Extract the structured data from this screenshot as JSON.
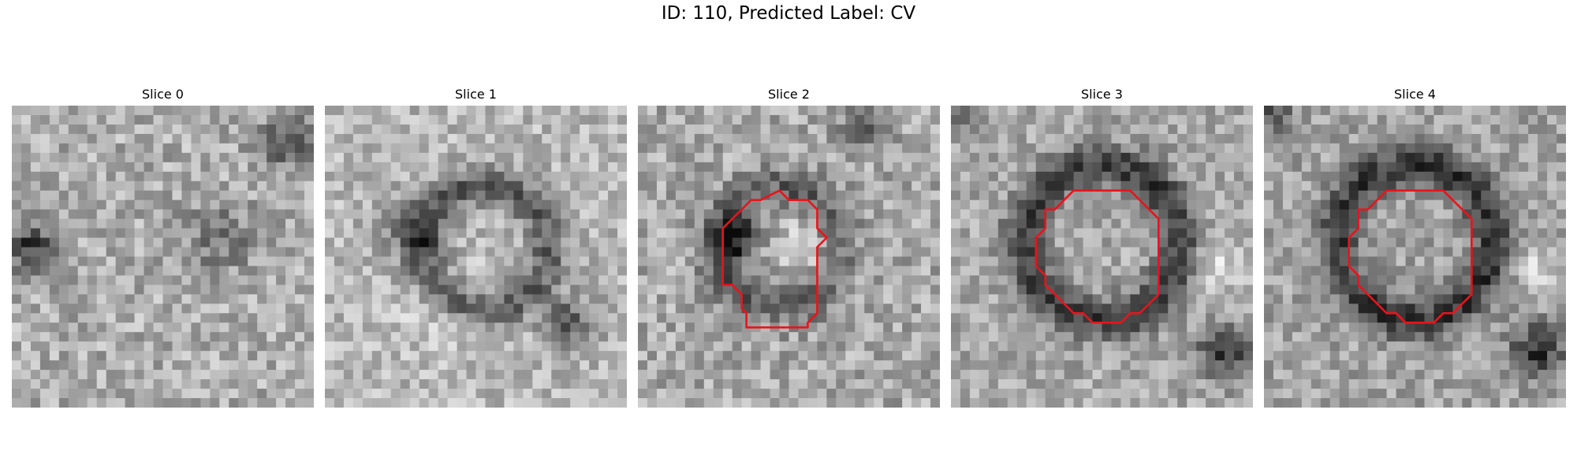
{
  "figure": {
    "title": "ID: 110, Predicted Label: CV"
  },
  "panels": [
    {
      "title": "Slice 0"
    },
    {
      "title": "Slice 1"
    },
    {
      "title": "Slice 2"
    },
    {
      "title": "Slice 3"
    },
    {
      "title": "Slice 4"
    }
  ],
  "colors": {
    "contour": "#e8141c",
    "background": "#ffffff"
  }
}
